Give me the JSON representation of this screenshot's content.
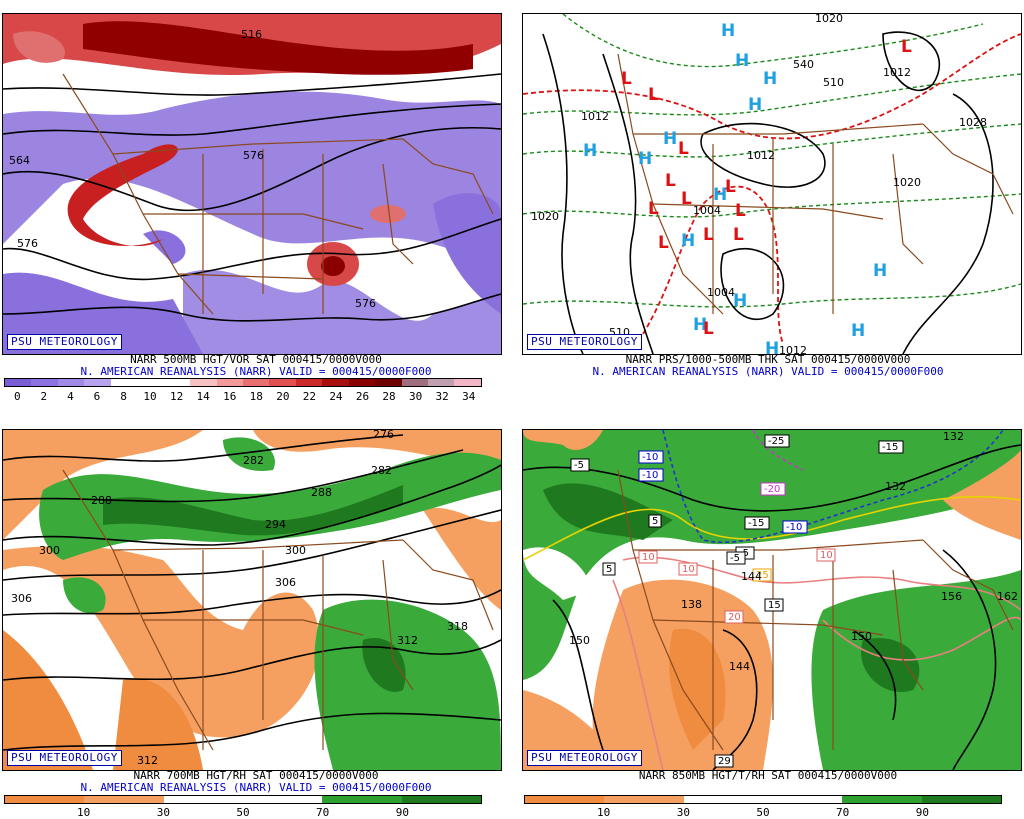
{
  "panels": {
    "tl": {
      "watermark": "PSU METEOROLOGY",
      "title1": "NARR 500MB HGT/VOR SAT 000415/0000V000",
      "title2": "N. AMERICAN REANALYSIS (NARR) VALID = 000415/0000F000",
      "contour_labels": [
        "516",
        "564",
        "576",
        "576",
        "576"
      ],
      "colorbar_labels": [
        "0",
        "2",
        "4",
        "6",
        "8",
        "10",
        "12",
        "14",
        "16",
        "18",
        "20",
        "22",
        "24",
        "26",
        "28",
        "30",
        "32",
        "34"
      ],
      "colorbar_colors": [
        "#7a5ed6",
        "#8c72e0",
        "#a08ae6",
        "#b6a4ee",
        "#ffffff",
        "#ffffff",
        "#ffffff",
        "#f7c1c1",
        "#f09a9a",
        "#e87070",
        "#e05050",
        "#cc2a2a",
        "#a81010",
        "#880000",
        "#6e0000",
        "#9e6e7e",
        "#c0a0b0",
        "#f2b6c6"
      ]
    },
    "tr": {
      "watermark": "PSU METEOROLOGY",
      "title1": "NARR PRS/1000-500MB THK SAT 000415/0000V000",
      "title2": "N. AMERICAN REANALYSIS (NARR) VALID = 000415/0000F000",
      "contour_labels": [
        "1020",
        "1012",
        "1012",
        "1028",
        "1020",
        "1020",
        "1012",
        "1004",
        "1004",
        "540",
        "510",
        "1012",
        "510"
      ],
      "high_letter": "H",
      "low_letter": "L"
    },
    "bl": {
      "watermark": "PSU METEOROLOGY",
      "title1": "NARR 700MB HGT/RH SAT 000415/0000V000",
      "title2": "N. AMERICAN REANALYSIS (NARR) VALID = 000415/0000F000",
      "contour_labels": [
        "276",
        "282",
        "288",
        "288",
        "294",
        "300",
        "300",
        "306",
        "306",
        "312",
        "318",
        "312",
        "282"
      ],
      "colorbar_labels": [
        "10",
        "30",
        "50",
        "70",
        "90"
      ],
      "colorbar_colors": [
        "#f08c40",
        "#f4a060",
        "#ffffff",
        "#ffffff",
        "#2ea02e",
        "#1f7a1f"
      ]
    },
    "br": {
      "watermark": "PSU METEOROLOGY",
      "title1": "NARR 850MB HGT/T/RH SAT 000415/0000V000",
      "contour_labels": [
        "150",
        "150",
        "144",
        "138",
        "144",
        "162",
        "156",
        "132",
        "132"
      ],
      "box_labels": [
        "-25",
        "-10",
        "-10",
        "-5",
        "-5",
        "5",
        "5",
        "-15",
        "-10",
        "-15",
        "-20",
        "-5",
        "10",
        "10",
        "10",
        "15",
        "20",
        "29",
        "25"
      ],
      "colorbar_labels": [
        "10",
        "30",
        "50",
        "70",
        "90"
      ],
      "colorbar_colors": [
        "#f08c40",
        "#f4a060",
        "#ffffff",
        "#ffffff",
        "#2ea02e",
        "#1f7a1f"
      ]
    }
  }
}
